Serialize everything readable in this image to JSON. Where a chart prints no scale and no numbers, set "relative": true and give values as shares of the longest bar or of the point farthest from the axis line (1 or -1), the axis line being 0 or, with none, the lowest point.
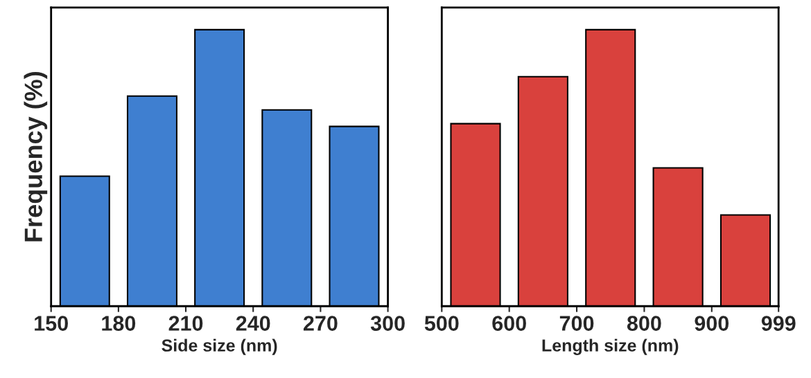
{
  "chart_data": [
    {
      "type": "bar",
      "relative": true,
      "x": [
        165,
        195,
        225,
        255,
        285
      ],
      "values": [
        0.47,
        0.76,
        1,
        0.71,
        0.65
      ],
      "color": "#3f7fd0",
      "xlim": [
        150,
        300
      ],
      "xticks": [
        150,
        180,
        210,
        240,
        270,
        300
      ],
      "xlabel": "Side size (nm)",
      "ylabel": "Frequency (%)",
      "grid": false
    },
    {
      "type": "bar",
      "relative": true,
      "x": [
        550,
        650,
        750,
        850,
        950
      ],
      "values": [
        0.66,
        0.83,
        1,
        0.5,
        0.33
      ],
      "color": "#d9413d",
      "xlim": [
        500,
        999
      ],
      "xticks": [
        500,
        600,
        700,
        800,
        900,
        999
      ],
      "xlabel": "Length size (nm)",
      "grid": false
    }
  ]
}
